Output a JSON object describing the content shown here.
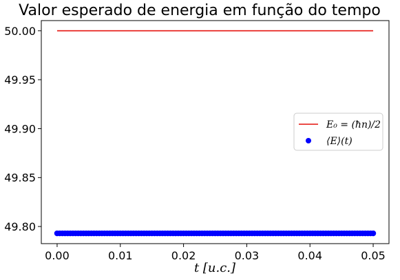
{
  "chart_data": {
    "type": "line",
    "title": "Valor esperado de energia em função do tempo",
    "xlabel": "t [u.c.]",
    "ylabel": "",
    "xlim": [
      -0.0025,
      0.0525
    ],
    "ylim": [
      49.7825,
      50.0104
    ],
    "xticks": [
      0.0,
      0.01,
      0.02,
      0.03,
      0.04,
      0.05
    ],
    "xtick_labels": [
      "0.00",
      "0.01",
      "0.02",
      "0.03",
      "0.04",
      "0.05"
    ],
    "yticks": [
      49.8,
      49.85,
      49.9,
      49.95,
      50.0
    ],
    "ytick_labels": [
      "49.80",
      "49.85",
      "49.90",
      "49.95",
      "50.00"
    ],
    "grid": false,
    "legend_position": "center-right",
    "series": [
      {
        "name": "E_0 = (ħn)/2",
        "kind": "line",
        "color": "#e8302b",
        "x": [
          0.0,
          0.05
        ],
        "y": [
          50.0,
          50.0
        ]
      },
      {
        "name": "⟨E⟩(t)",
        "kind": "scatter",
        "color": "#0000ff",
        "x_start": 0.0,
        "x_end": 0.05,
        "y_constant": 49.793
      }
    ]
  },
  "legend": {
    "line_label": "E₀ = (ħn)/2",
    "scatter_label": "⟨E⟩(t)"
  }
}
